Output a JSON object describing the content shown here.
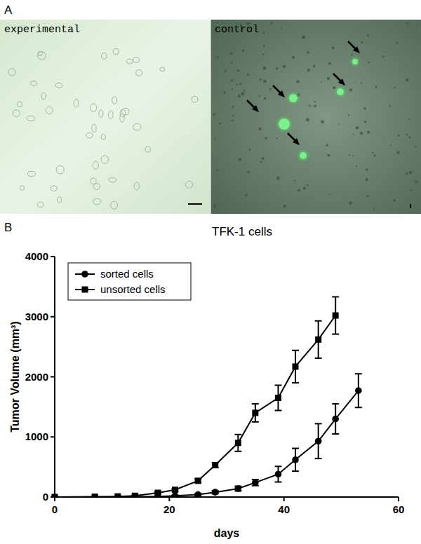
{
  "panel_a": {
    "label": "A",
    "left_caption": "experimental",
    "right_caption": "control"
  },
  "panel_b_label": "B",
  "chart_data": {
    "type": "line",
    "title": "TFK-1 cells",
    "x_label": "days",
    "y_label": "Tumor Volume (mm³)",
    "xlim": [
      0,
      60
    ],
    "xticks": [
      0,
      20,
      40,
      60
    ],
    "ylim": [
      0,
      4000
    ],
    "yticks": [
      0,
      1000,
      2000,
      3000,
      4000
    ],
    "grid": false,
    "legend": "upper left",
    "series": [
      {
        "name": "sorted cells",
        "color": "#000000",
        "marker": "circle",
        "line_style": "solid",
        "x": [
          0,
          7,
          11,
          14,
          18,
          21,
          25,
          28,
          32,
          35,
          39,
          42,
          46,
          49,
          53
        ],
        "values": [
          0,
          0,
          0,
          5,
          10,
          20,
          40,
          80,
          140,
          240,
          380,
          620,
          930,
          1300,
          1770
        ],
        "errors": [
          0,
          0,
          0,
          5,
          5,
          10,
          15,
          25,
          40,
          50,
          130,
          190,
          290,
          250,
          280
        ]
      },
      {
        "name": "unsorted cells",
        "color": "#000000",
        "marker": "square",
        "line_style": "solid",
        "x": [
          0,
          7,
          11,
          14,
          18,
          21,
          25,
          28,
          32,
          35,
          39,
          42,
          46,
          49
        ],
        "values": [
          0,
          5,
          10,
          20,
          70,
          120,
          270,
          530,
          900,
          1400,
          1650,
          2170,
          2620,
          3020
        ],
        "errors": [
          0,
          5,
          5,
          10,
          15,
          20,
          30,
          40,
          140,
          150,
          210,
          270,
          310,
          310
        ]
      }
    ]
  }
}
